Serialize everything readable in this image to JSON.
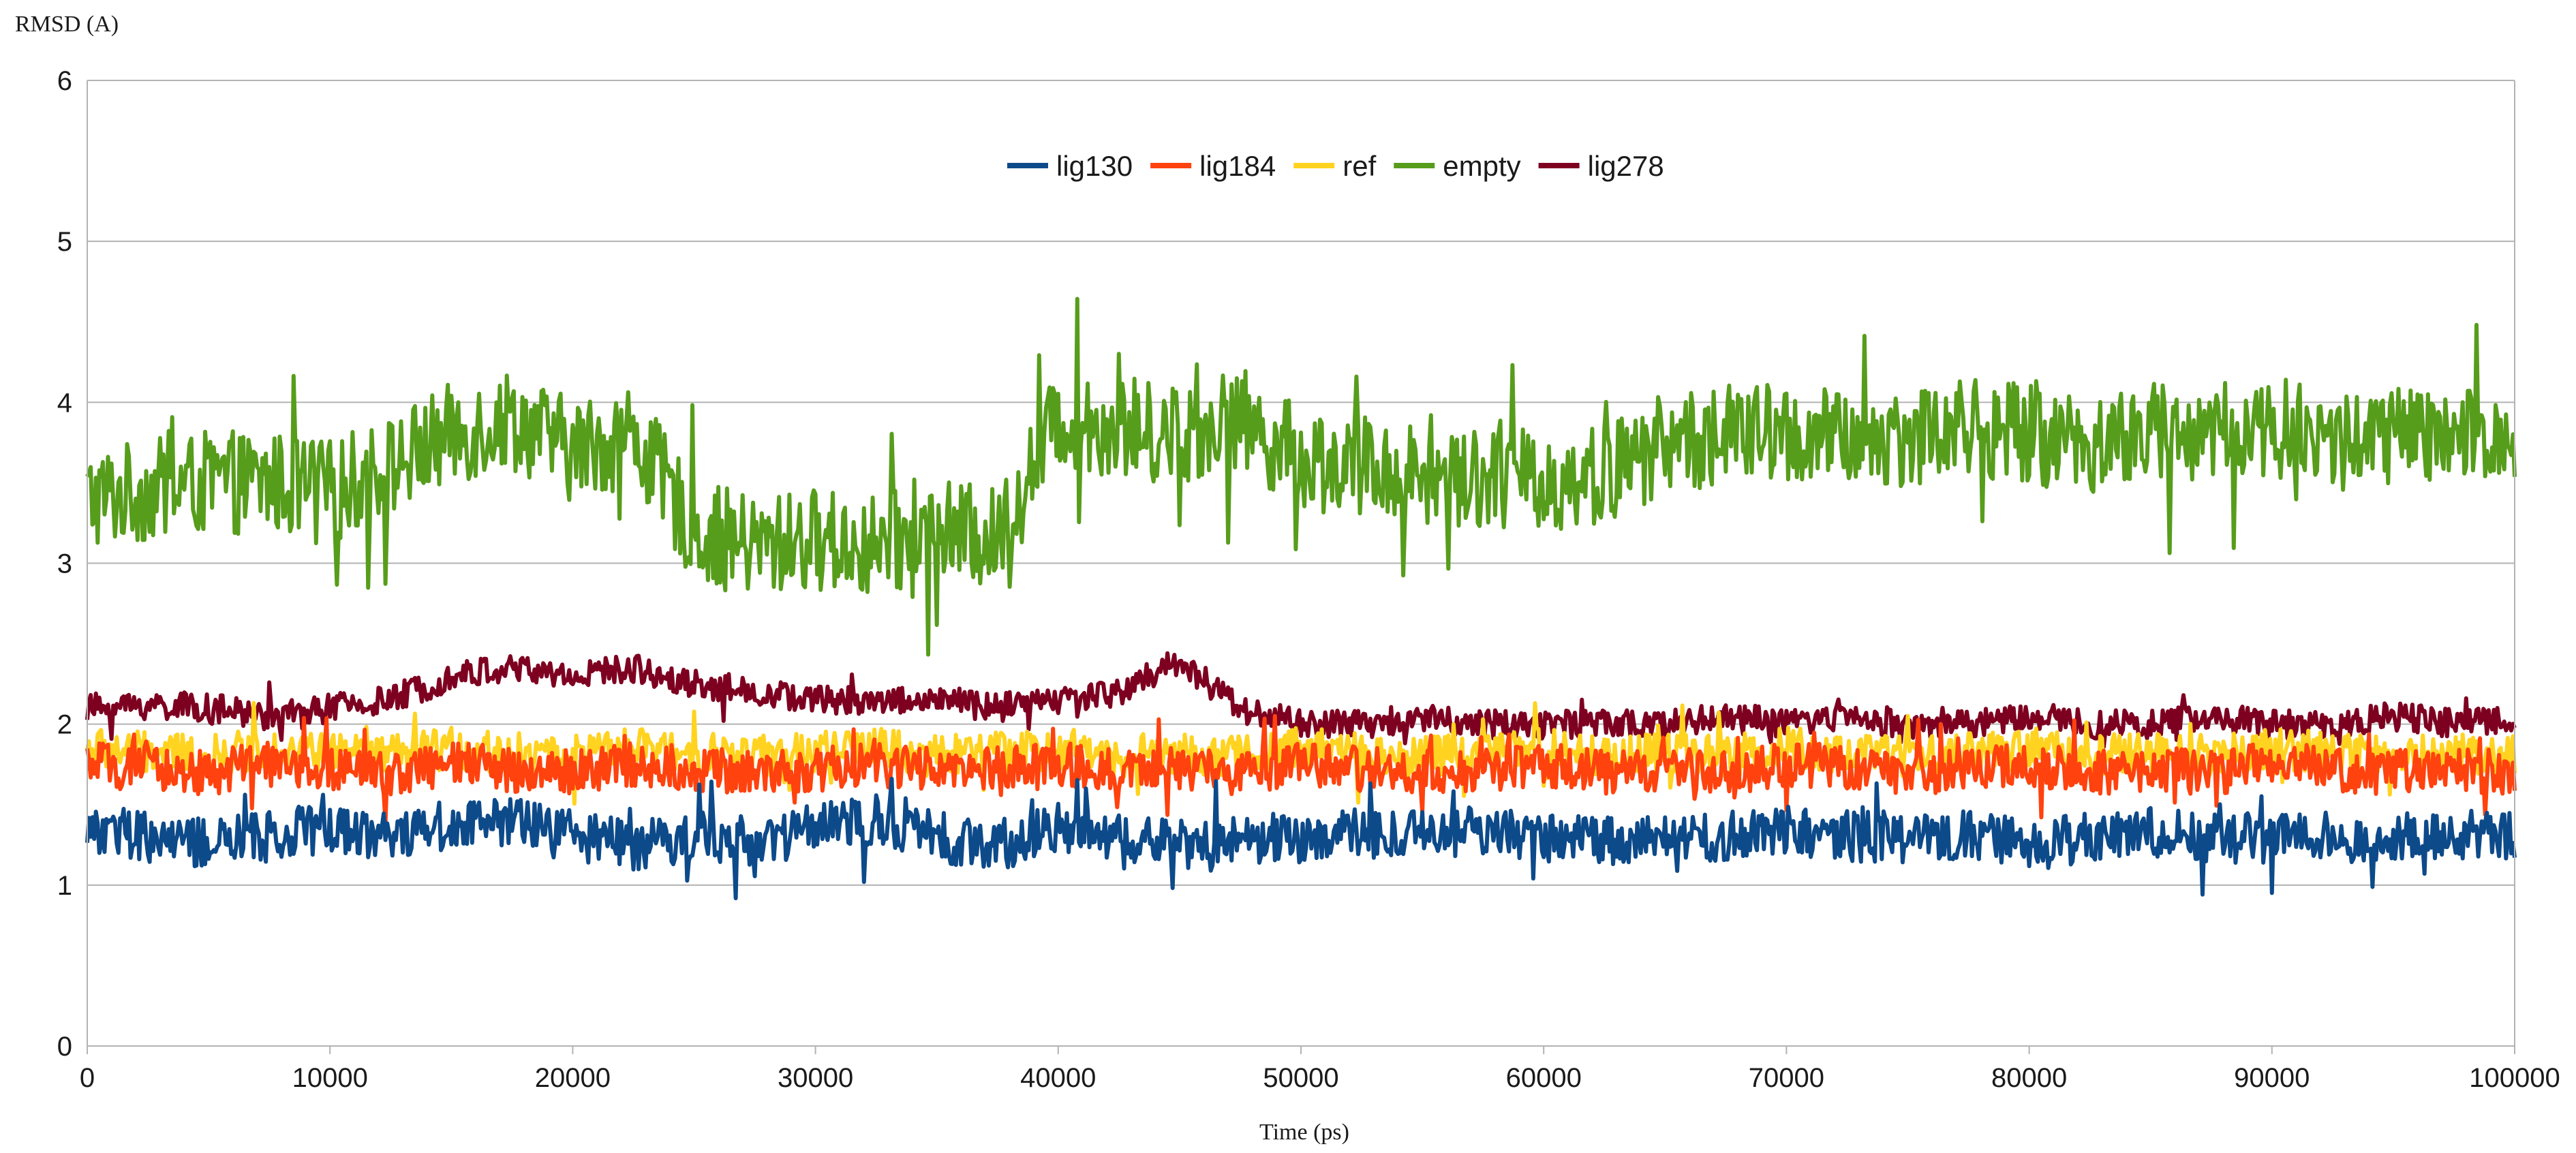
{
  "chart_data": {
    "type": "line",
    "title": "",
    "xlabel": "Time (ps)",
    "ylabel": "RMSD (A)",
    "xlim": [
      0,
      100000
    ],
    "ylim": [
      0,
      6
    ],
    "xticks": [
      0,
      10000,
      20000,
      30000,
      40000,
      50000,
      60000,
      70000,
      80000,
      90000,
      100000
    ],
    "yticks": [
      0,
      1,
      2,
      3,
      4,
      5,
      6
    ],
    "grid": "horizontal",
    "legend_position": "top-center, inside plot",
    "series": [
      {
        "name": "lig130",
        "color": "#0d4a8a",
        "x": [
          0,
          2500,
          5000,
          7500,
          10000,
          12500,
          15000,
          17500,
          20000,
          22500,
          25000,
          27500,
          30000,
          32500,
          35000,
          37500,
          40000,
          42500,
          45000,
          47500,
          50000,
          52500,
          55000,
          57500,
          60000,
          62500,
          65000,
          67500,
          70000,
          72500,
          75000,
          77500,
          80000,
          82500,
          85000,
          87500,
          90000,
          92500,
          95000,
          97500,
          100000
        ],
        "y": [
          1.35,
          1.3,
          1.25,
          1.3,
          1.35,
          1.32,
          1.38,
          1.4,
          1.3,
          1.25,
          1.3,
          1.28,
          1.35,
          1.4,
          1.3,
          1.25,
          1.35,
          1.3,
          1.25,
          1.3,
          1.28,
          1.32,
          1.3,
          1.35,
          1.3,
          1.28,
          1.32,
          1.3,
          1.35,
          1.3,
          1.3,
          1.32,
          1.25,
          1.3,
          1.32,
          1.3,
          1.28,
          1.3,
          1.3,
          1.32,
          1.3
        ]
      },
      {
        "name": "lig184",
        "color": "#ff420e",
        "x": [
          0,
          2500,
          5000,
          7500,
          10000,
          12500,
          15000,
          17500,
          20000,
          22500,
          25000,
          27500,
          30000,
          32500,
          35000,
          37500,
          40000,
          42500,
          45000,
          47500,
          50000,
          52500,
          55000,
          57500,
          60000,
          62500,
          65000,
          67500,
          70000,
          72500,
          75000,
          77500,
          80000,
          82500,
          85000,
          87500,
          90000,
          92500,
          95000,
          97500,
          100000
        ],
        "y": [
          1.75,
          1.72,
          1.7,
          1.75,
          1.72,
          1.7,
          1.75,
          1.72,
          1.7,
          1.75,
          1.72,
          1.7,
          1.72,
          1.75,
          1.7,
          1.72,
          1.75,
          1.7,
          1.72,
          1.7,
          1.75,
          1.72,
          1.7,
          1.72,
          1.75,
          1.7,
          1.72,
          1.7,
          1.75,
          1.72,
          1.7,
          1.72,
          1.75,
          1.7,
          1.72,
          1.7,
          1.75,
          1.72,
          1.7,
          1.72,
          1.7
        ]
      },
      {
        "name": "ref",
        "color": "#ffd320",
        "x": [
          0,
          2500,
          5000,
          7500,
          10000,
          12500,
          15000,
          17500,
          20000,
          22500,
          25000,
          27500,
          30000,
          32500,
          35000,
          37500,
          40000,
          42500,
          45000,
          47500,
          50000,
          52500,
          55000,
          57500,
          60000,
          62500,
          65000,
          67500,
          70000,
          72500,
          75000,
          77500,
          80000,
          82500,
          85000,
          87500,
          90000,
          92500,
          95000,
          97500,
          100000
        ],
        "y": [
          1.85,
          1.82,
          1.8,
          1.85,
          1.82,
          1.8,
          1.85,
          1.82,
          1.8,
          1.85,
          1.82,
          1.8,
          1.82,
          1.85,
          1.8,
          1.82,
          1.85,
          1.8,
          1.82,
          1.8,
          1.85,
          1.82,
          1.8,
          1.82,
          1.85,
          1.8,
          1.82,
          1.8,
          1.85,
          1.82,
          1.8,
          1.82,
          1.85,
          1.8,
          1.82,
          1.8,
          1.85,
          1.82,
          1.8,
          1.82,
          1.8
        ]
      },
      {
        "name": "empty",
        "color": "#579d1c",
        "x": [
          0,
          2500,
          5000,
          7500,
          10000,
          12500,
          15000,
          17500,
          20000,
          22500,
          25000,
          27500,
          30000,
          32500,
          35000,
          37500,
          40000,
          42500,
          45000,
          47500,
          50000,
          52500,
          55000,
          57500,
          60000,
          62500,
          65000,
          67500,
          70000,
          72500,
          75000,
          77500,
          80000,
          82500,
          85000,
          87500,
          90000,
          92500,
          95000,
          97500,
          100000
        ],
        "y": [
          3.4,
          3.45,
          3.5,
          3.5,
          3.45,
          3.6,
          3.8,
          3.9,
          3.7,
          3.8,
          3.2,
          3.1,
          3.15,
          3.1,
          3.2,
          3.15,
          3.9,
          3.85,
          3.8,
          3.9,
          3.65,
          3.6,
          3.55,
          3.55,
          3.5,
          3.55,
          3.75,
          3.8,
          3.8,
          3.75,
          3.8,
          3.85,
          3.8,
          3.75,
          3.8,
          3.8,
          3.85,
          3.75,
          3.8,
          3.75,
          3.8
        ]
      },
      {
        "name": "lig278",
        "color": "#7e0021",
        "x": [
          0,
          2500,
          5000,
          7500,
          10000,
          12500,
          15000,
          17500,
          20000,
          22500,
          25000,
          27500,
          30000,
          32500,
          35000,
          37500,
          40000,
          42500,
          45000,
          47500,
          50000,
          52500,
          55000,
          57500,
          60000,
          62500,
          65000,
          67500,
          70000,
          72500,
          75000,
          77500,
          80000,
          82500,
          85000,
          87500,
          90000,
          92500,
          95000,
          97500,
          100000
        ],
        "y": [
          2.1,
          2.12,
          2.1,
          2.05,
          2.1,
          2.15,
          2.3,
          2.35,
          2.3,
          2.35,
          2.25,
          2.2,
          2.15,
          2.15,
          2.15,
          2.1,
          2.15,
          2.2,
          2.4,
          2.1,
          2.0,
          2.0,
          2.05,
          2.0,
          2.0,
          2.0,
          2.0,
          2.05,
          2.0,
          2.05,
          2.0,
          2.0,
          2.05,
          2.0,
          2.0,
          2.05,
          2.0,
          2.0,
          2.05,
          2.0,
          2.05
        ]
      }
    ]
  }
}
